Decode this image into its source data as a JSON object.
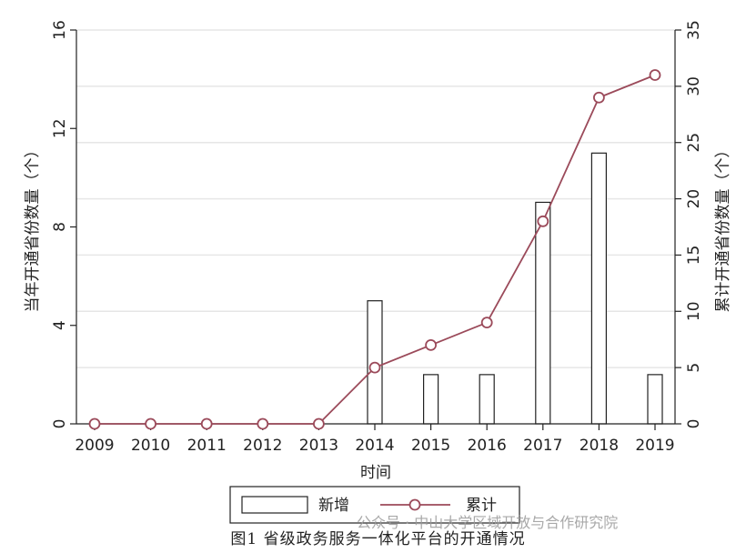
{
  "chart_data": {
    "type": "bar+line",
    "categories": [
      "2009",
      "2010",
      "2011",
      "2012",
      "2013",
      "2014",
      "2015",
      "2016",
      "2017",
      "2018",
      "2019"
    ],
    "series": [
      {
        "name": "新增",
        "type": "bar",
        "axis": "left",
        "values": [
          0,
          0,
          0,
          0,
          0,
          5,
          2,
          2,
          9,
          11,
          2
        ]
      },
      {
        "name": "累计",
        "type": "line",
        "axis": "right",
        "values": [
          0,
          0,
          0,
          0,
          0,
          5,
          7,
          9,
          18,
          29,
          31
        ]
      }
    ],
    "xlabel": "时间",
    "ylabel_left": "当年开通省份数量（个）",
    "ylabel_right": "累计开通省份数量（个）",
    "ylim_left": [
      0,
      16
    ],
    "yticks_left": [
      0,
      4,
      8,
      12,
      16
    ],
    "ylim_right": [
      0,
      35
    ],
    "yticks_right": [
      0,
      5,
      10,
      15,
      20,
      25,
      30,
      35
    ],
    "grid": true,
    "legend_position": "bottom",
    "colors": {
      "line": "#9b4a5a",
      "bar_edge": "#222222",
      "bar_fill": "#ffffff",
      "grid": "#e6e6e6"
    }
  },
  "caption": "图1   省级政务服务一体化平台的开通情况",
  "watermark": "公众号 · 中山大学区域开放与合作研究院"
}
